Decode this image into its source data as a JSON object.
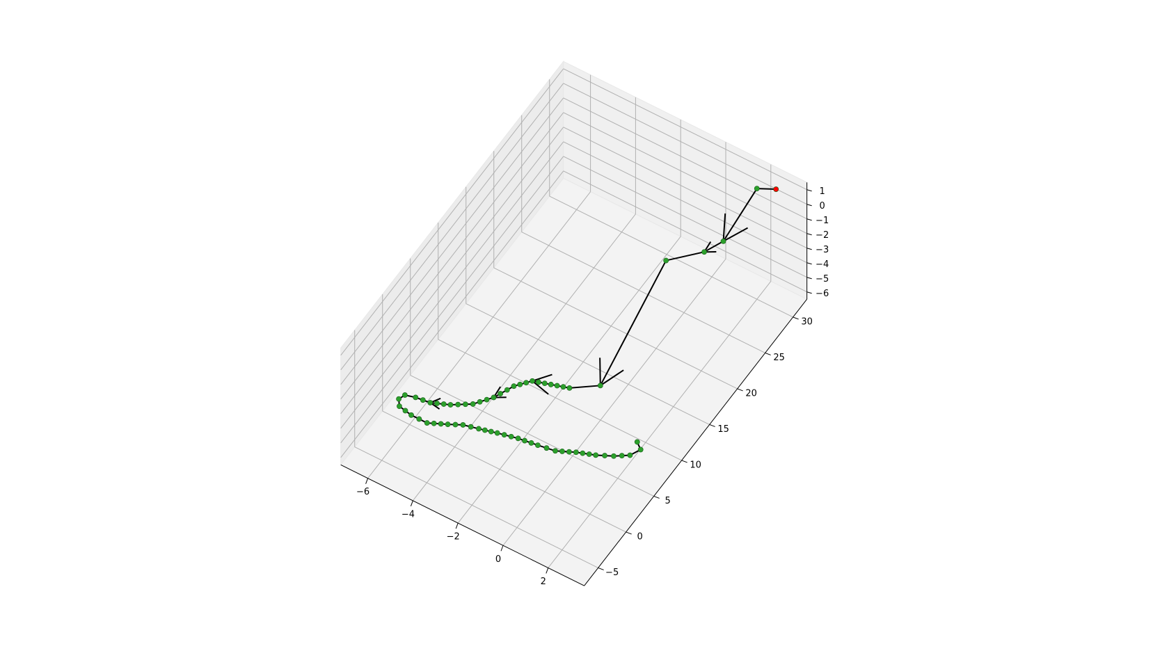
{
  "chart_data": {
    "type": "scatter",
    "projection": "3d",
    "title": "",
    "xlabel": "",
    "ylabel": "",
    "zlabel": "",
    "grid": true,
    "x_ticks": [
      -6,
      -4,
      -2,
      0,
      2
    ],
    "y_ticks": [
      -5,
      0,
      5,
      10,
      15,
      20,
      25,
      30
    ],
    "z_ticks": [
      1,
      0,
      -1,
      -2,
      -3,
      -4,
      -5,
      -6
    ],
    "xlim": [
      -7.2,
      3.6
    ],
    "ylim": [
      -7.5,
      32.5
    ],
    "zlim": [
      -6.5,
      1.5
    ],
    "point_color": "#2ca02c",
    "start_color": "#ff0000",
    "path_color": "#000000",
    "trajectory": [
      {
        "x": 2.6,
        "y": 31.0,
        "z": 1.0
      },
      {
        "x": 1.9,
        "y": 30.4,
        "z": 0.8
      },
      {
        "x": 1.3,
        "y": 26.8,
        "z": -1.5
      },
      {
        "x": 0.7,
        "y": 25.8,
        "z": -2.2
      },
      {
        "x": -0.6,
        "y": 24.2,
        "z": -3.0
      },
      {
        "x": -0.5,
        "y": 12.0,
        "z": -5.5
      },
      {
        "x": -1.5,
        "y": 10.5,
        "z": -5.7
      },
      {
        "x": -2.9,
        "y": 9.5,
        "z": -5.8
      },
      {
        "x": -3.4,
        "y": 8.2,
        "z": -5.9
      },
      {
        "x": -3.8,
        "y": 6.2,
        "z": -6.0
      },
      {
        "x": -4.3,
        "y": 4.5,
        "z": -6.0
      },
      {
        "x": -5.0,
        "y": 3.3,
        "z": -6.0
      },
      {
        "x": -5.7,
        "y": 2.5,
        "z": -6.0
      },
      {
        "x": -6.3,
        "y": 2.3,
        "z": -6.0
      },
      {
        "x": -6.7,
        "y": 2.0,
        "z": -6.0
      },
      {
        "x": -6.8,
        "y": 1.3,
        "z": -6.0
      },
      {
        "x": -6.6,
        "y": 0.6,
        "z": -6.0
      },
      {
        "x": -6.0,
        "y": 0.3,
        "z": -6.0
      },
      {
        "x": -5.3,
        "y": 0.3,
        "z": -6.0
      },
      {
        "x": -4.6,
        "y": 1.2,
        "z": -6.0
      },
      {
        "x": -4.1,
        "y": 1.9,
        "z": -6.0
      },
      {
        "x": -3.5,
        "y": 2.3,
        "z": -6.0
      },
      {
        "x": -2.8,
        "y": 2.8,
        "z": -6.0
      },
      {
        "x": -2.0,
        "y": 3.3,
        "z": -6.0
      },
      {
        "x": -1.2,
        "y": 3.6,
        "z": -6.0
      },
      {
        "x": -0.5,
        "y": 3.9,
        "z": -6.0
      },
      {
        "x": 0.2,
        "y": 4.8,
        "z": -6.0
      },
      {
        "x": 0.9,
        "y": 5.5,
        "z": -6.0
      },
      {
        "x": 1.5,
        "y": 6.3,
        "z": -6.0
      },
      {
        "x": 2.0,
        "y": 7.2,
        "z": -6.0
      },
      {
        "x": 2.2,
        "y": 8.3,
        "z": -6.0
      },
      {
        "x": 1.9,
        "y": 8.9,
        "z": -6.0
      }
    ],
    "start_point": {
      "x": 2.6,
      "y": 31.0,
      "z": 1.0
    },
    "arrows": [
      {
        "from": 1,
        "to": 2
      },
      {
        "from": 2,
        "to": 3
      },
      {
        "from": 4,
        "to": 5
      },
      {
        "from": 6,
        "to": 7
      },
      {
        "from": 8,
        "to": 9
      },
      {
        "from": 11,
        "to": 12
      }
    ]
  }
}
